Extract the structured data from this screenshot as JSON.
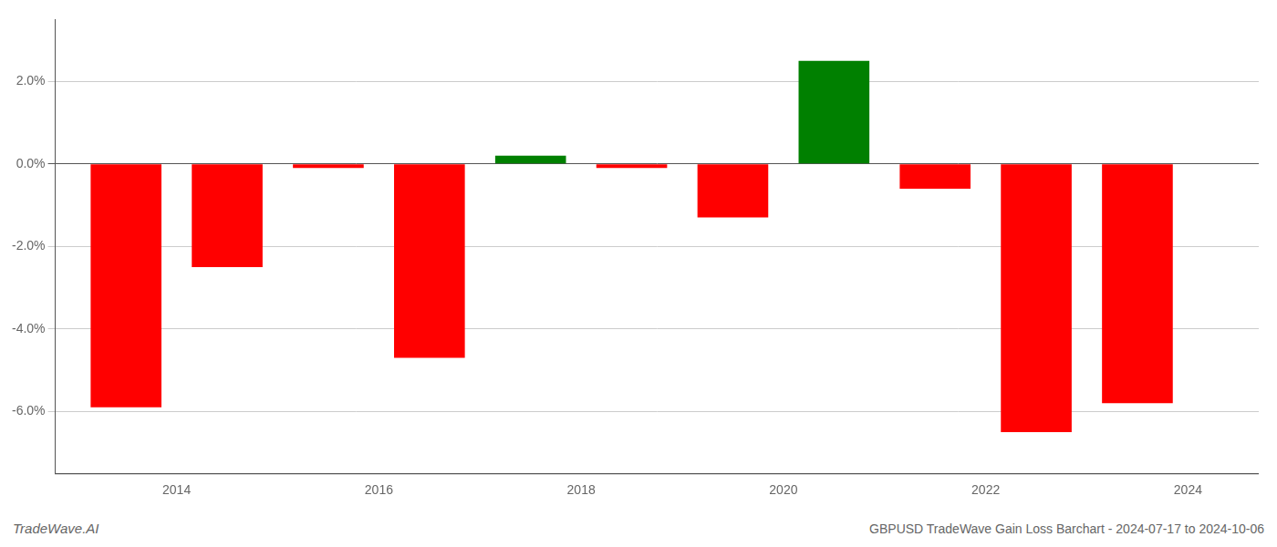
{
  "chart_data": {
    "type": "bar",
    "x": [
      2013.5,
      2014.5,
      2015.5,
      2016.5,
      2017.5,
      2018.5,
      2019.5,
      2020.5,
      2021.5,
      2022.5,
      2023.5
    ],
    "values": [
      -0.059,
      -0.025,
      -0.001,
      -0.047,
      0.002,
      -0.001,
      -0.013,
      0.025,
      -0.006,
      -0.065,
      -0.058
    ],
    "colors": [
      "#ff0000",
      "#ff0000",
      "#ff0000",
      "#ff0000",
      "#008000",
      "#ff0000",
      "#ff0000",
      "#008000",
      "#ff0000",
      "#ff0000",
      "#ff0000"
    ],
    "xlim": [
      2012.8,
      2024.7
    ],
    "xticks": [
      2014,
      2016,
      2018,
      2020,
      2022,
      2024
    ],
    "ylim": [
      -0.075,
      0.035
    ],
    "yticks": [
      {
        "value": -0.06,
        "label": "-6.0%"
      },
      {
        "value": -0.04,
        "label": "-4.0%"
      },
      {
        "value": -0.02,
        "label": "-2.0%"
      },
      {
        "value": 0.0,
        "label": "0.0%"
      },
      {
        "value": 0.02,
        "label": "2.0%"
      }
    ],
    "grid": true,
    "annotations": [
      "TradeWave.AI",
      "GBPUSD TradeWave Gain Loss Barchart - 2024-07-17 to 2024-10-06"
    ]
  }
}
